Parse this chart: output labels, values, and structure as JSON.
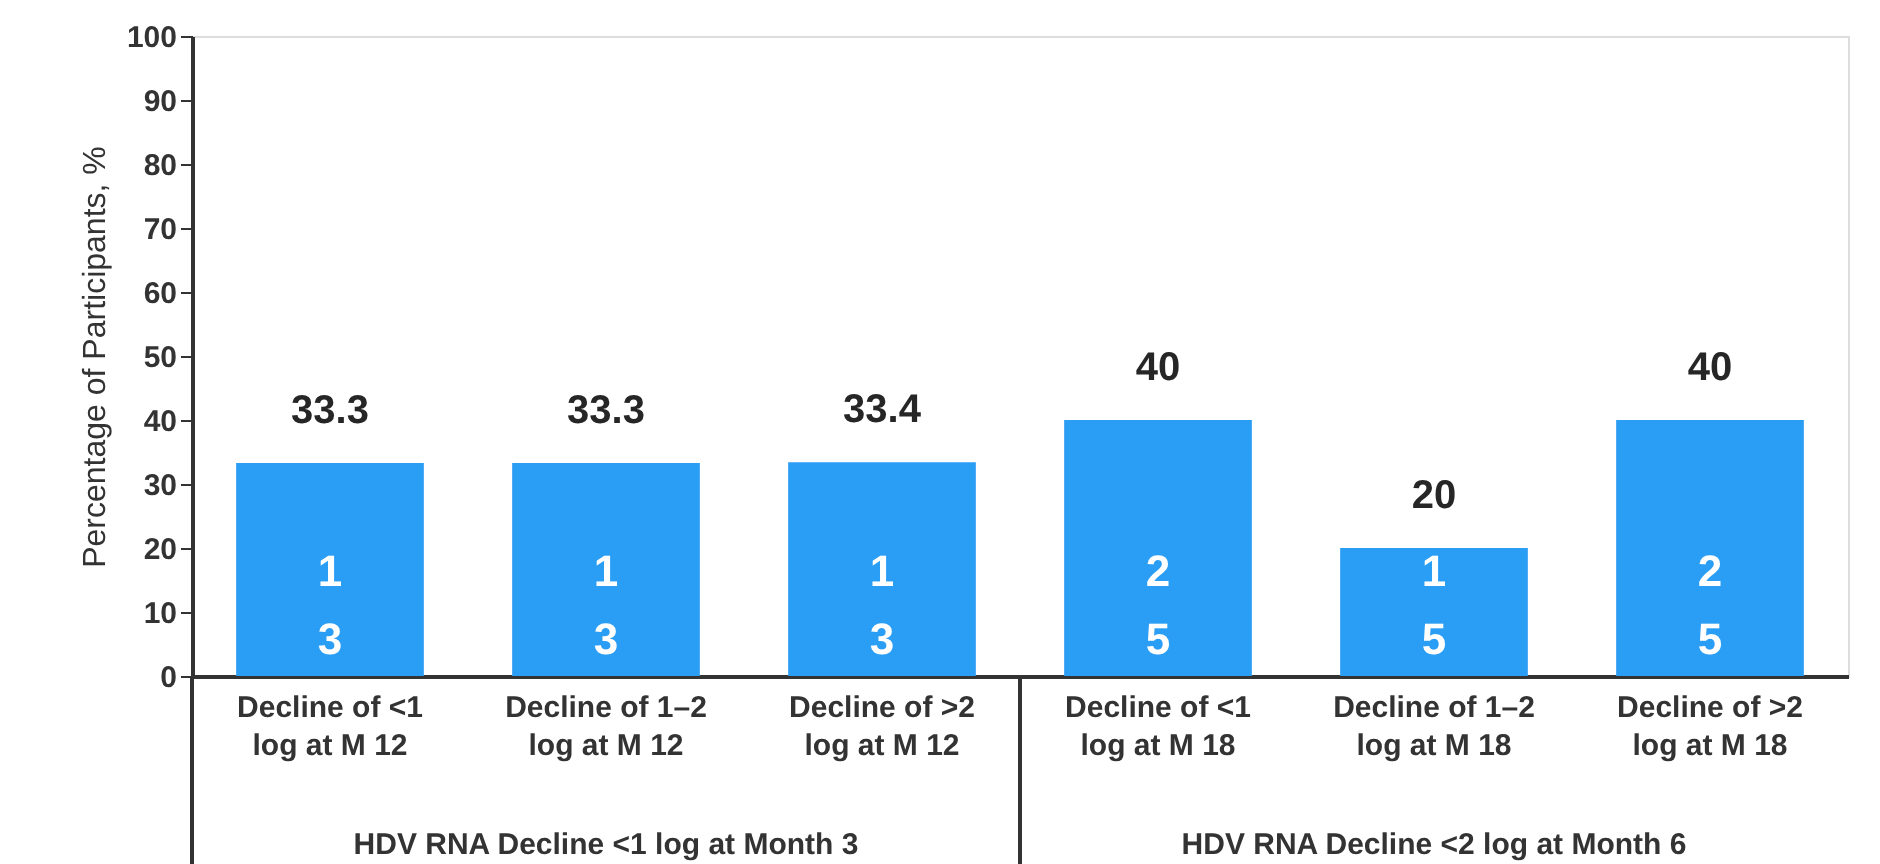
{
  "chart_data": {
    "type": "bar",
    "ylabel": "Percentage of Participants, %",
    "categories": [
      "Decline of <1\nlog at M 12",
      "Decline of 1–2\nlog at M 12",
      "Decline of >2\nlog at M 12",
      "Decline of <1\nlog at M 18",
      "Decline of 1–2\nlog at M 18",
      "Decline of >2\nlog at M 18"
    ],
    "values": [
      33.3,
      33.3,
      33.4,
      40,
      20,
      40
    ],
    "color": "#2a9df4",
    "data_labels": true,
    "ylim": [
      0,
      100
    ],
    "yticks": [
      0,
      10,
      20,
      30,
      40,
      50,
      60,
      70,
      80,
      90,
      100
    ],
    "grid": false,
    "annotations": [
      "1\n3",
      "1\n3",
      "1\n3",
      "2\n5",
      "1\n5",
      "2\n5",
      "HDV RNA Decline <1 log at Month 3",
      "HDV RNA Decline <2 log at Month 6"
    ]
  }
}
